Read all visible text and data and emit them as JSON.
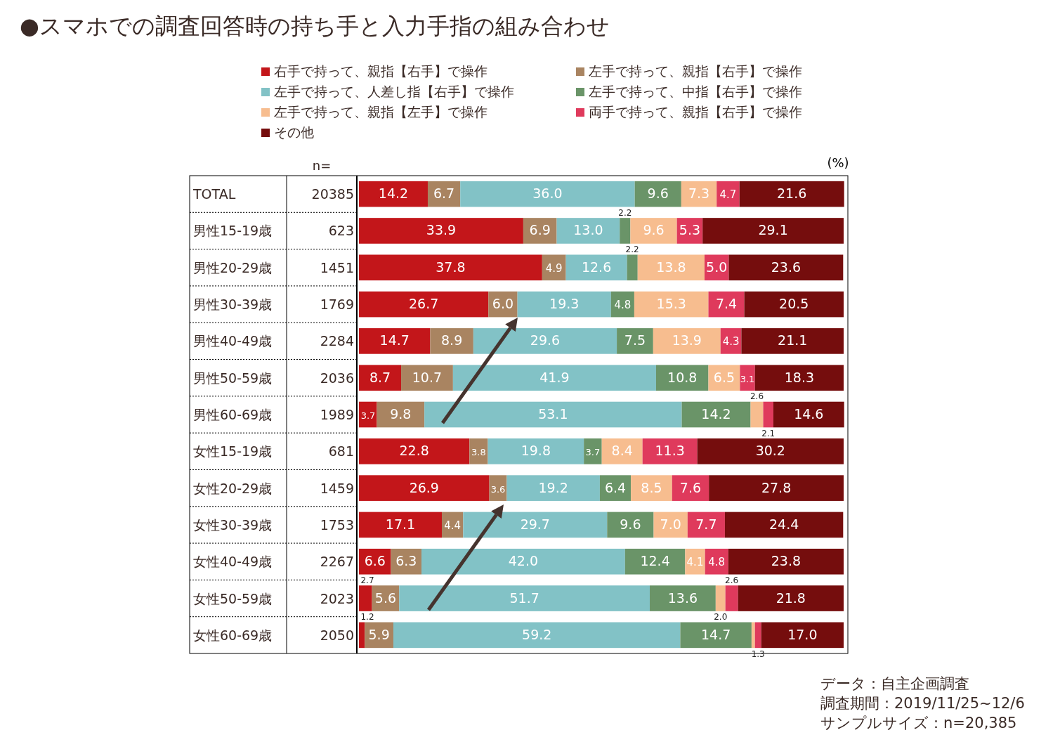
{
  "chart_data": {
    "type": "bar",
    "orientation": "horizontal",
    "stacked": true,
    "title": "●スマホでの調査回答時の持ち手と入力手指の組み合わせ",
    "categories": [
      "TOTAL",
      "男性15-19歳",
      "男性20-29歳",
      "男性30-39歳",
      "男性40-49歳",
      "男性50-59歳",
      "男性60-69歳",
      "女性15-19歳",
      "女性20-29歳",
      "女性30-39歳",
      "女性40-49歳",
      "女性50-59歳",
      "女性60-69歳"
    ],
    "xlim": [
      0,
      100
    ],
    "tick_labels": "y",
    "legend": "top",
    "series": [
      {
        "name": "右手で持って、親指【右手】で操作",
        "color": "#c3161a",
        "values": [
          14.2,
          33.9,
          37.8,
          26.7,
          14.7,
          8.7,
          3.7,
          22.8,
          26.9,
          17.1,
          6.6,
          2.7,
          1.2
        ],
        "value_labels": [
          "14.2",
          "33.9",
          "37.8",
          "26.7",
          "14.7",
          "8.7",
          "3.7",
          "22.8",
          "26.9",
          "17.1",
          "6.6",
          "2.7",
          "1.2"
        ]
      },
      {
        "name": "左手で持って、親指【右手】で操作",
        "color": "#a98461",
        "values": [
          6.7,
          6.9,
          4.9,
          6.0,
          8.9,
          10.7,
          9.8,
          3.8,
          3.6,
          4.4,
          6.3,
          5.6,
          5.9
        ],
        "value_labels": [
          "6.7",
          "6.9",
          "4.9",
          "6.0",
          "8.9",
          "10.7",
          "9.8",
          "3.8",
          "3.6",
          "4.4",
          "6.3",
          "5.6",
          "5.9"
        ]
      },
      {
        "name": "左手で持って、人差し指【右手】で操作",
        "color": "#82c2c6",
        "values": [
          36.0,
          13.0,
          12.6,
          19.3,
          29.6,
          41.9,
          53.1,
          19.8,
          19.2,
          29.7,
          42.0,
          51.7,
          59.2
        ],
        "value_labels": [
          "36.0",
          "13.0",
          "12.6",
          "19.3",
          "29.6",
          "41.9",
          "53.1",
          "19.8",
          "19.2",
          "29.7",
          "42.0",
          "51.7",
          "59.2"
        ]
      },
      {
        "name": "左手で持って、中指【右手】で操作",
        "color": "#6a9468",
        "values": [
          9.6,
          2.2,
          2.2,
          4.8,
          7.5,
          10.8,
          14.2,
          3.7,
          6.4,
          9.6,
          12.4,
          13.6,
          14.7
        ],
        "value_labels": [
          "9.6",
          "2.2",
          "2.2",
          "4.8",
          "7.5",
          "10.8",
          "14.2",
          "3.7",
          "6.4",
          "9.6",
          "12.4",
          "13.6",
          "14.7"
        ]
      },
      {
        "name": "左手で持って、親指【左手】で操作",
        "color": "#f7bd8f",
        "values": [
          7.3,
          9.6,
          13.8,
          15.3,
          13.9,
          6.5,
          2.6,
          8.4,
          8.5,
          7.0,
          4.1,
          2.0,
          0.7
        ],
        "value_labels": [
          "7.3",
          "9.6",
          "13.8",
          "15.3",
          "13.9",
          "6.5",
          "2.6",
          "8.4",
          "8.5",
          "7.0",
          "4.1",
          "2.0",
          null
        ]
      },
      {
        "name": "両手で持って、親指【右手】で操作",
        "color": "#df3a5c",
        "values": [
          4.7,
          5.3,
          5.0,
          7.4,
          4.3,
          3.1,
          2.1,
          11.3,
          7.6,
          7.7,
          4.8,
          2.6,
          1.3
        ],
        "value_labels": [
          "4.7",
          "5.3",
          "5.0",
          "7.4",
          "4.3",
          "3.1",
          "2.1",
          "11.3",
          "7.6",
          "7.7",
          "4.8",
          "2.6",
          "1.3"
        ]
      },
      {
        "name": "その他",
        "color": "#750d0d",
        "values": [
          21.6,
          29.1,
          23.6,
          20.5,
          21.1,
          18.3,
          14.6,
          30.2,
          27.8,
          24.4,
          23.8,
          21.8,
          17.0
        ],
        "value_labels": [
          "21.6",
          "29.1",
          "23.6",
          "20.5",
          "21.1",
          "18.3",
          "14.6",
          "30.2",
          "27.8",
          "24.4",
          "23.8",
          "21.8",
          "17.0"
        ]
      }
    ],
    "annotations": [
      "n=",
      "(%)",
      "データ：自主企画調査",
      "調査期間：2019/11/25~12/6",
      "サンプルサイズ：n=20,385",
      "20385",
      "623",
      "1451",
      "1769",
      "2284",
      "2036",
      "1989",
      "681",
      "1459",
      "1753",
      "2267",
      "2023",
      "2050"
    ]
  }
}
